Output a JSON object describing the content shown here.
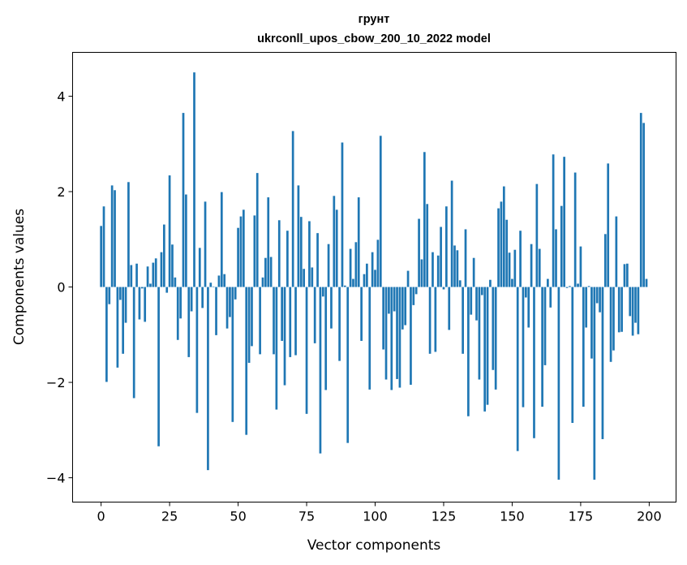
{
  "chart_data": {
    "type": "bar",
    "title": "грунт",
    "subtitle": "ukrconll_upos_cbow_200_10_2022 model",
    "xlabel": "Vector components",
    "ylabel": "Components values",
    "xlim": [
      -10.4,
      209.8
    ],
    "ylim": [
      -4.51,
      4.92
    ],
    "xticks": [
      0,
      25,
      50,
      75,
      100,
      125,
      150,
      175,
      200
    ],
    "xtick_labels": [
      "0",
      "25",
      "50",
      "75",
      "100",
      "125",
      "150",
      "175",
      "200"
    ],
    "yticks": [
      -4,
      -2,
      0,
      2,
      4
    ],
    "ytick_labels": [
      "−4",
      "−2",
      "0",
      "2",
      "4"
    ],
    "grid": false,
    "color": "#1f77b4",
    "values": [
      1.28,
      1.69,
      -1.99,
      -0.36,
      2.13,
      2.03,
      -1.69,
      -0.27,
      -1.4,
      -0.75,
      2.2,
      0.46,
      -2.33,
      0.49,
      -0.68,
      -0.03,
      -0.73,
      0.43,
      0.07,
      0.51,
      0.6,
      -3.34,
      0.73,
      1.31,
      -0.12,
      2.34,
      0.89,
      0.2,
      -1.11,
      -0.66,
      3.65,
      1.94,
      -1.47,
      -0.51,
      4.5,
      -2.64,
      0.82,
      -0.44,
      1.79,
      -3.84,
      0.09,
      0.01,
      -1.01,
      0.24,
      1.99,
      0.27,
      -0.87,
      -0.63,
      -2.83,
      -0.26,
      1.24,
      1.48,
      1.62,
      -3.1,
      -1.59,
      -1.24,
      1.5,
      2.39,
      -1.41,
      0.2,
      0.61,
      1.88,
      0.63,
      -1.41,
      -2.57,
      1.4,
      -1.13,
      -2.06,
      1.18,
      -1.47,
      3.27,
      -1.43,
      2.13,
      1.47,
      0.38,
      -2.66,
      1.38,
      0.41,
      -1.18,
      1.13,
      -3.49,
      -0.2,
      -2.16,
      0.9,
      -0.87,
      1.91,
      1.62,
      -1.55,
      3.03,
      0.03,
      -3.27,
      0.8,
      0.17,
      0.94,
      1.88,
      -1.13,
      0.27,
      0.49,
      -2.15,
      0.73,
      0.36,
      0.99,
      3.17,
      -1.31,
      -1.94,
      -0.56,
      -2.16,
      -0.51,
      -1.93,
      -2.11,
      -0.89,
      -0.8,
      0.34,
      -2.05,
      -0.38,
      -0.15,
      1.43,
      0.58,
      2.83,
      1.74,
      -1.4,
      0.73,
      -1.36,
      0.66,
      1.26,
      -0.05,
      1.69,
      -0.9,
      2.23,
      0.87,
      0.77,
      0.14,
      -1.4,
      1.21,
      -2.71,
      -0.58,
      0.61,
      -0.7,
      -1.94,
      -0.17,
      -2.61,
      -2.47,
      0.15,
      -1.74,
      -2.15,
      1.65,
      1.79,
      2.11,
      1.41,
      0.72,
      0.17,
      0.78,
      -3.44,
      1.18,
      -2.52,
      -0.22,
      -0.85,
      0.9,
      -3.17,
      2.16,
      0.8,
      -2.51,
      -1.64,
      0.17,
      -0.43,
      2.78,
      1.21,
      -4.04,
      1.7,
      2.73,
      -0.02,
      0.02,
      -2.85,
      2.4,
      0.07,
      0.85,
      -2.51,
      -0.85,
      0.02,
      -1.5,
      -4.04,
      -0.34,
      -0.53,
      -3.19,
      1.11,
      2.59,
      -1.57,
      -1.33,
      1.48,
      -0.95,
      -0.94,
      0.48,
      0.49,
      -0.61,
      -1.02,
      -0.75,
      -0.99,
      3.65,
      3.44,
      0.17
    ]
  }
}
